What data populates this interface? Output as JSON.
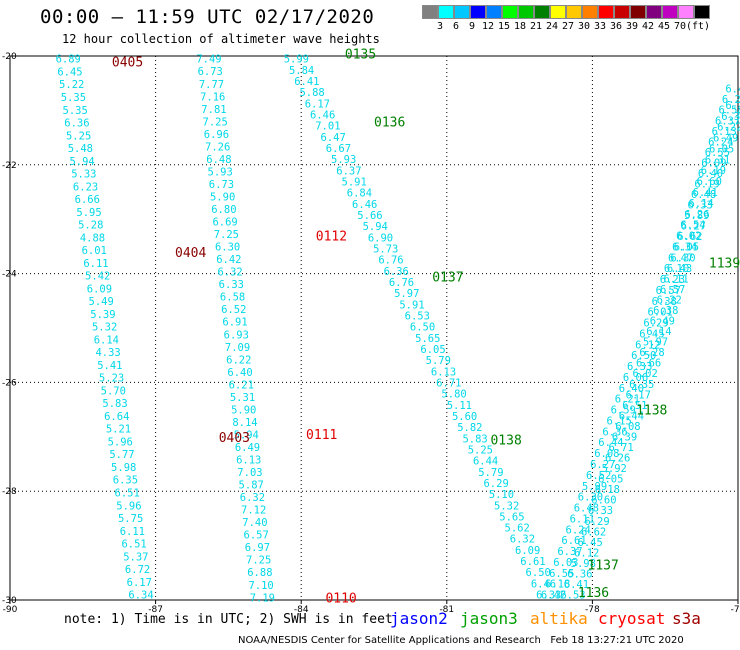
{
  "title": "00:00 – 11:59 UTC 02/17/2020",
  "subtitle": "12 hour collection of altimeter wave heights",
  "legend": {
    "unit_label": "(ft)",
    "colors": [
      "#808080",
      "#00ffff",
      "#00c8ff",
      "#0000ff",
      "#0080ff",
      "#00ff00",
      "#00c800",
      "#008000",
      "#ffff00",
      "#ffc800",
      "#ff8000",
      "#ff0000",
      "#c80000",
      "#800000",
      "#800080",
      "#c000c0",
      "#ff80ff",
      "#000000"
    ],
    "labels": [
      "3",
      "6",
      "9",
      "12",
      "15",
      "18",
      "21",
      "24",
      "27",
      "30",
      "33",
      "36",
      "39",
      "42",
      "45",
      "70",
      "(ft)"
    ]
  },
  "map": {
    "lon_range": [
      -90,
      -75
    ],
    "lat_range": [
      -30,
      -20
    ],
    "lon_ticks": [
      "-90",
      "-87",
      "-84",
      "-81",
      "-78",
      "-75"
    ],
    "lat_ticks": [
      "-20",
      "-22",
      "-24",
      "-26",
      "-28",
      "-30"
    ],
    "grid": true
  },
  "tracks": [
    {
      "id": "track-0405",
      "color": "#00d8e8",
      "start": [
        -88.8,
        -20.05
      ],
      "end": [
        -87.3,
        -29.9
      ],
      "values": [
        "6.89",
        "6.45",
        "5.22",
        "5.35",
        "5.35",
        "6.36",
        "5.25",
        "5.48",
        "5.94",
        "5.33",
        "6.23",
        "6.66",
        "5.95",
        "5.28",
        "4.88",
        "6.01",
        "6.11",
        "5.42",
        "6.09",
        "5.49",
        "5.39",
        "5.32",
        "6.14",
        "4.33",
        "5.41",
        "5.23",
        "5.70",
        "5.83",
        "6.64",
        "5.21",
        "5.96",
        "5.77",
        "5.98",
        "6.35",
        "6.51",
        "5.96",
        "5.75",
        "6.11",
        "6.51",
        "5.37",
        "6.72",
        "6.17",
        "6.34"
      ]
    },
    {
      "id": "track-0112",
      "color": "#00d8e8",
      "start": [
        -85.9,
        -20.05
      ],
      "end": [
        -84.8,
        -29.95
      ],
      "values": [
        "7.49",
        "6.73",
        "7.77",
        "7.16",
        "7.81",
        "7.25",
        "6.96",
        "7.26",
        "6.48",
        "5.93",
        "6.73",
        "5.90",
        "6.80",
        "6.69",
        "7.25",
        "6.30",
        "6.42",
        "6.32",
        "6.33",
        "6.58",
        "6.52",
        "6.91",
        "6.93",
        "7.09",
        "6.22",
        "6.40",
        "6.21",
        "5.31",
        "5.90",
        "8.14",
        "5.94",
        "6.49",
        "6.13",
        "7.03",
        "5.87",
        "6.32",
        "7.12",
        "7.40",
        "6.57",
        "6.97",
        "7.25",
        "6.88",
        "7.10",
        "7.19"
      ]
    },
    {
      "id": "track-0135",
      "color": "#00d8e8",
      "start": [
        -84.1,
        -20.05
      ],
      "end": [
        -78.9,
        -29.9
      ],
      "values": [
        "5.99",
        "5.84",
        "6.41",
        "5.88",
        "6.17",
        "6.46",
        "7.01",
        "6.47",
        "6.67",
        "5.93",
        "6.37",
        "5.91",
        "6.84",
        "6.46",
        "5.66",
        "5.94",
        "6.90",
        "5.73",
        "6.76",
        "6.36",
        "6.76",
        "5.97",
        "5.91",
        "6.53",
        "6.50",
        "5.65",
        "6.05",
        "5.79",
        "6.13",
        "6.71",
        "5.80",
        "5.11",
        "5.60",
        "5.82",
        "5.83",
        "5.25",
        "6.44",
        "5.79",
        "6.29",
        "5.10",
        "5.32",
        "5.65",
        "5.62",
        "6.32",
        "6.09",
        "6.61",
        "6.50",
        "6.46",
        "6.33"
      ]
    },
    {
      "id": "track-1139-a",
      "color": "#00d8e8",
      "start": [
        -78.4,
        -29.9
      ],
      "end": [
        -75.0,
        -20.6
      ],
      "values": [
        "6.53",
        "6.41",
        "6.36",
        "5.98",
        "6.12",
        "6.45",
        "6.62",
        "6.29",
        "6.33",
        "6.60",
        "6.18",
        "6.05",
        "5.92",
        "6.26",
        "6.71",
        "6.39",
        "6.08",
        "6.44",
        "6.51",
        "6.17",
        "6.35",
        "6.02",
        "6.66",
        "6.28",
        "5.97",
        "6.14",
        "6.49",
        "6.38",
        "6.22",
        "6.57",
        "6.11",
        "6.43",
        "6.30",
        "6.05",
        "6.62",
        "6.27",
        "5.89",
        "6.33",
        "6.48",
        "6.19",
        "6.40",
        "6.09",
        "6.55",
        "6.24",
        "6.13",
        "6.37",
        "6.58",
        "6.20",
        "6.46"
      ]
    },
    {
      "id": "track-1139-b",
      "color": "#00d8e8",
      "start": [
        -78.8,
        -29.9
      ],
      "end": [
        -75.0,
        -20.9
      ],
      "values": [
        "6.42",
        "6.18",
        "6.55",
        "6.03",
        "6.37",
        "6.61",
        "6.24",
        "6.11",
        "6.48",
        "6.30",
        "5.99",
        "6.52",
        "6.27",
        "6.08",
        "6.44",
        "6.36",
        "6.15",
        "6.59",
        "6.21",
        "6.40",
        "6.06",
        "6.33",
        "6.50",
        "6.12",
        "6.45",
        "6.29",
        "6.01",
        "6.38",
        "6.57",
        "6.23",
        "6.10",
        "6.47",
        "6.34",
        "6.02",
        "6.54",
        "6.26",
        "6.14",
        "6.41",
        "6.60",
        "6.19",
        "6.31",
        "6.05",
        "6.49",
        "6.22",
        "6.39",
        "6.16"
      ]
    }
  ],
  "labels": [
    {
      "text": "0405",
      "lon": -87.9,
      "lat": -20.1,
      "color": "#8b0000"
    },
    {
      "text": "0404",
      "lon": -86.6,
      "lat": -23.6,
      "color": "#8b0000"
    },
    {
      "text": "0403",
      "lon": -85.7,
      "lat": -27.0,
      "color": "#8b0000"
    },
    {
      "text": "0112",
      "lon": -83.7,
      "lat": -23.3,
      "color": "#e00000"
    },
    {
      "text": "0111",
      "lon": -83.9,
      "lat": -26.95,
      "color": "#e00000"
    },
    {
      "text": "0110",
      "lon": -83.5,
      "lat": -29.95,
      "color": "#e00000"
    },
    {
      "text": "0135",
      "lon": -83.1,
      "lat": -19.95,
      "color": "#008000"
    },
    {
      "text": "0136",
      "lon": -82.5,
      "lat": -21.2,
      "color": "#008000"
    },
    {
      "text": "0137",
      "lon": -81.3,
      "lat": -24.05,
      "color": "#008000"
    },
    {
      "text": "0138",
      "lon": -80.1,
      "lat": -27.05,
      "color": "#008000"
    },
    {
      "text": "1139",
      "lon": -75.6,
      "lat": -23.8,
      "color": "#008000"
    },
    {
      "text": "1138",
      "lon": -77.1,
      "lat": -26.5,
      "color": "#008000"
    },
    {
      "text": "1137",
      "lon": -78.1,
      "lat": -29.35,
      "color": "#008000"
    },
    {
      "text": "1136",
      "lon": -78.3,
      "lat": -29.85,
      "color": "#008000"
    }
  ],
  "note": "note: 1) Time is in UTC; 2) SWH is in feet",
  "satellites": [
    {
      "name": "jason2",
      "color": "#0000ff"
    },
    {
      "name": "jason3",
      "color": "#00a000"
    },
    {
      "name": "altika",
      "color": "#ff9000"
    },
    {
      "name": "cryosat",
      "color": "#ff0000"
    },
    {
      "name": "s3a",
      "color": "#a00000"
    }
  ],
  "footer": "NOAA/NESDIS Center for Satellite Applications and Research   Feb 18 13:27:21 UTC 2020"
}
